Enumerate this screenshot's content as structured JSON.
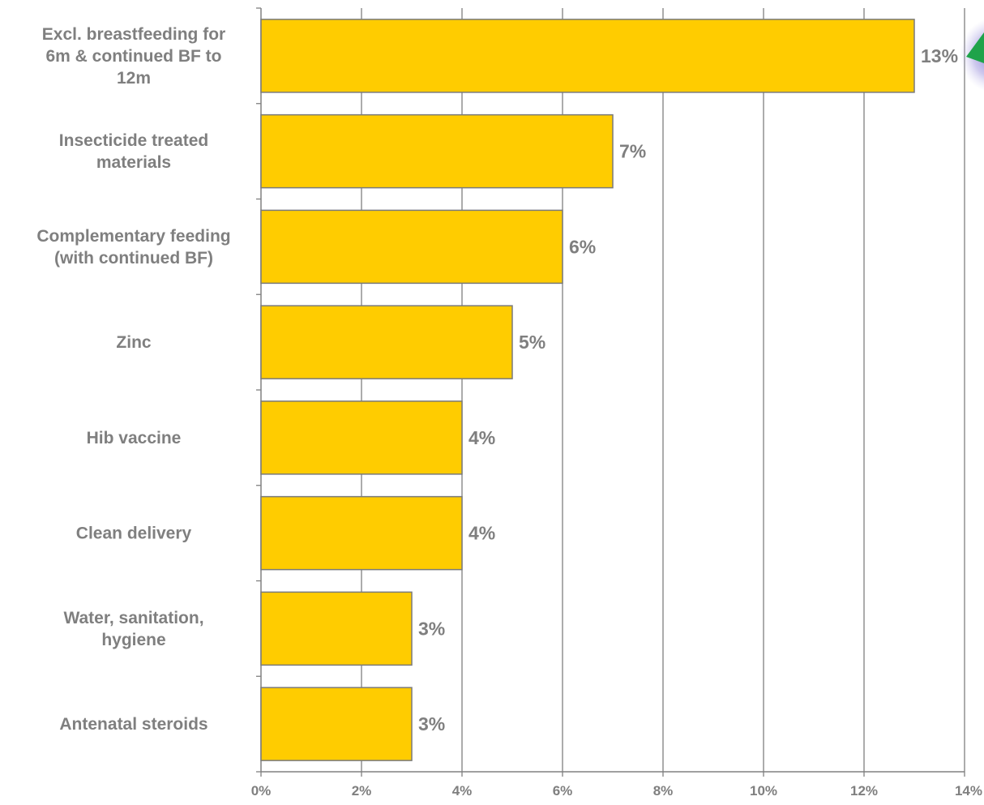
{
  "chart_data": {
    "type": "bar",
    "orientation": "horizontal",
    "categories": [
      [
        "Excl. breastfeeding for",
        "6m & continued BF to",
        "12m"
      ],
      [
        "Insecticide treated",
        "materials"
      ],
      [
        "Complementary feeding",
        "(with continued BF)"
      ],
      [
        "Zinc"
      ],
      [
        "Hib vaccine"
      ],
      [
        "Clean delivery"
      ],
      [
        "Water, sanitation,",
        "hygiene"
      ],
      [
        "Antenatal steroids"
      ]
    ],
    "values": [
      13,
      7,
      6,
      5,
      4,
      4,
      3,
      3
    ],
    "value_labels": [
      "13%",
      "7%",
      "6%",
      "5%",
      "4%",
      "4%",
      "3%",
      "3%"
    ],
    "xlim": [
      0,
      14
    ],
    "x_ticks": [
      0,
      2,
      4,
      6,
      8,
      10,
      12,
      14
    ],
    "x_tick_labels": [
      "0%",
      "2%",
      "4%",
      "6%",
      "8%",
      "10%",
      "12%",
      "14%"
    ],
    "grid": "vertical",
    "bar_color": "#ffcc00",
    "bar_edge_color": "#7a7a7a",
    "grid_color": "#808080"
  }
}
